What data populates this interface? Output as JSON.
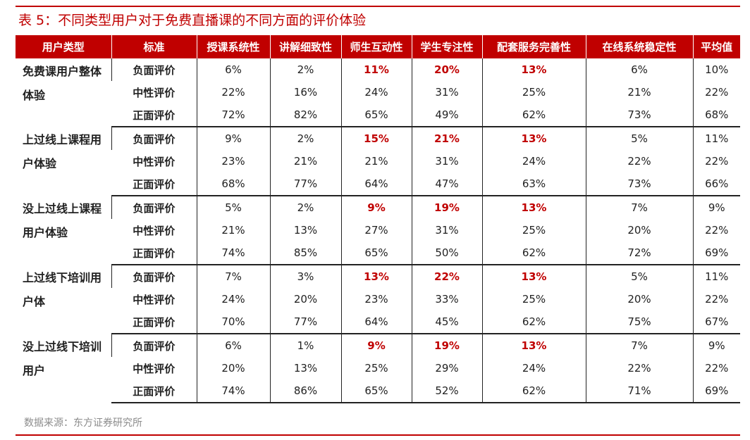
{
  "title": "表 5：不同类型用户对于免费直播课的不同方面的评价体验",
  "headers": [
    "用户类型",
    "标准",
    "授课系统性",
    "讲解细致性",
    "师生互动性",
    "学生专注性",
    "配套服务完善性",
    "在线系统稳定性",
    "平均值"
  ],
  "groups": [
    {
      "name": "免费课用户整体体验",
      "rows": [
        {
          "std": "负面评价",
          "vals": [
            "6%",
            "2%",
            "11%",
            "20%",
            "13%",
            "6%",
            "10%"
          ],
          "hl": [
            false,
            false,
            true,
            true,
            true,
            false,
            false
          ]
        },
        {
          "std": "中性评价",
          "vals": [
            "22%",
            "16%",
            "24%",
            "31%",
            "25%",
            "21%",
            "22%"
          ],
          "hl": [
            false,
            false,
            false,
            false,
            false,
            false,
            false
          ]
        },
        {
          "std": "正面评价",
          "vals": [
            "72%",
            "82%",
            "65%",
            "49%",
            "62%",
            "73%",
            "68%"
          ],
          "hl": [
            false,
            false,
            false,
            false,
            false,
            false,
            false
          ]
        }
      ]
    },
    {
      "name": "上过线上课程用户体验",
      "rows": [
        {
          "std": "负面评价",
          "vals": [
            "9%",
            "2%",
            "15%",
            "21%",
            "13%",
            "5%",
            "11%"
          ],
          "hl": [
            false,
            false,
            true,
            true,
            true,
            false,
            false
          ]
        },
        {
          "std": "中性评价",
          "vals": [
            "23%",
            "21%",
            "21%",
            "31%",
            "24%",
            "22%",
            "22%"
          ],
          "hl": [
            false,
            false,
            false,
            false,
            false,
            false,
            false
          ]
        },
        {
          "std": "正面评价",
          "vals": [
            "68%",
            "77%",
            "64%",
            "47%",
            "63%",
            "73%",
            "66%"
          ],
          "hl": [
            false,
            false,
            false,
            false,
            false,
            false,
            false
          ]
        }
      ]
    },
    {
      "name": "没上过线上课程用户体验",
      "rows": [
        {
          "std": "负面评价",
          "vals": [
            "5%",
            "2%",
            "9%",
            "19%",
            "13%",
            "7%",
            "9%"
          ],
          "hl": [
            false,
            false,
            true,
            true,
            true,
            false,
            false
          ]
        },
        {
          "std": "中性评价",
          "vals": [
            "21%",
            "13%",
            "27%",
            "31%",
            "25%",
            "20%",
            "22%"
          ],
          "hl": [
            false,
            false,
            false,
            false,
            false,
            false,
            false
          ]
        },
        {
          "std": "正面评价",
          "vals": [
            "74%",
            "85%",
            "65%",
            "50%",
            "62%",
            "72%",
            "69%"
          ],
          "hl": [
            false,
            false,
            false,
            false,
            false,
            false,
            false
          ]
        }
      ]
    },
    {
      "name": "上过线下培训用户体",
      "rows": [
        {
          "std": "负面评价",
          "vals": [
            "7%",
            "3%",
            "13%",
            "22%",
            "13%",
            "5%",
            "11%"
          ],
          "hl": [
            false,
            false,
            true,
            true,
            true,
            false,
            false
          ]
        },
        {
          "std": "中性评价",
          "vals": [
            "24%",
            "20%",
            "23%",
            "33%",
            "25%",
            "20%",
            "22%"
          ],
          "hl": [
            false,
            false,
            false,
            false,
            false,
            false,
            false
          ]
        },
        {
          "std": "正面评价",
          "vals": [
            "70%",
            "77%",
            "64%",
            "45%",
            "62%",
            "75%",
            "67%"
          ],
          "hl": [
            false,
            false,
            false,
            false,
            false,
            false,
            false
          ]
        }
      ]
    },
    {
      "name": "没上过线下培训用户",
      "rows": [
        {
          "std": "负面评价",
          "vals": [
            "6%",
            "1%",
            "9%",
            "19%",
            "13%",
            "7%",
            "9%"
          ],
          "hl": [
            false,
            false,
            true,
            true,
            true,
            false,
            false
          ]
        },
        {
          "std": "中性评价",
          "vals": [
            "20%",
            "13%",
            "25%",
            "29%",
            "24%",
            "22%",
            "22%"
          ],
          "hl": [
            false,
            false,
            false,
            false,
            false,
            false,
            false
          ]
        },
        {
          "std": "正面评价",
          "vals": [
            "74%",
            "86%",
            "65%",
            "52%",
            "62%",
            "71%",
            "69%"
          ],
          "hl": [
            false,
            false,
            false,
            false,
            false,
            false,
            false
          ]
        }
      ]
    }
  ],
  "source": "数据来源：东方证券研究所",
  "colors": {
    "accent": "#c00000",
    "text": "#222222",
    "source": "#8c8c8c"
  }
}
